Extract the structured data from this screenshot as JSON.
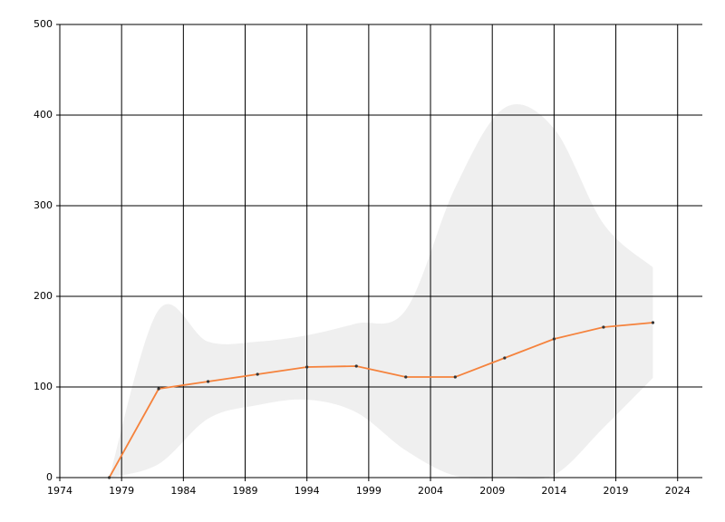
{
  "chart_data": {
    "type": "line",
    "x": [
      1978,
      1982,
      1986,
      1990,
      1994,
      1998,
      2002,
      2006,
      2010,
      2014,
      2018,
      2022
    ],
    "series": [
      {
        "color": "#f5823c",
        "values": [
          0,
          98,
          106,
          114,
          122,
          123,
          111,
          111,
          132,
          153,
          166,
          171
        ]
      }
    ],
    "band": {
      "color": "#efefef",
      "upper": [
        0,
        185,
        150,
        150,
        157,
        170,
        185,
        320,
        408,
        385,
        280,
        232
      ],
      "lower": [
        0,
        15,
        65,
        80,
        86,
        72,
        30,
        2,
        0,
        3,
        55,
        110
      ]
    },
    "xlim": [
      1974,
      2026
    ],
    "xticks": [
      1974,
      1979,
      1984,
      1989,
      1994,
      1999,
      2004,
      2009,
      2014,
      2019,
      2024
    ],
    "ylim": [
      0,
      500
    ],
    "yticks": [
      0,
      100,
      200,
      300,
      400,
      500
    ],
    "grid": true
  }
}
